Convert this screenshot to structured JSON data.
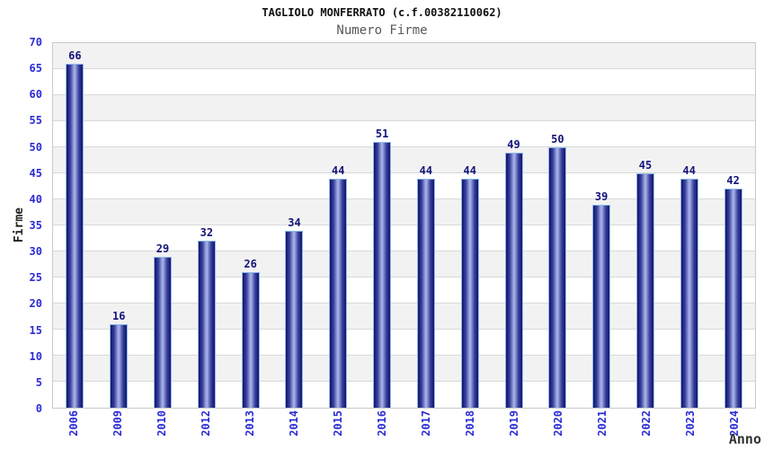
{
  "chart_data": {
    "type": "bar",
    "title": "TAGLIOLO MONFERRATO (c.f.00382110062)",
    "subtitle": "Numero Firme",
    "xlabel": "Anno",
    "ylabel": "Firme",
    "categories": [
      "2006",
      "2009",
      "2010",
      "2012",
      "2013",
      "2014",
      "2015",
      "2016",
      "2017",
      "2018",
      "2019",
      "2020",
      "2021",
      "2022",
      "2023",
      "2024"
    ],
    "values": [
      66,
      16,
      29,
      32,
      26,
      34,
      44,
      51,
      44,
      44,
      49,
      50,
      39,
      45,
      44,
      42
    ],
    "ylim": [
      0,
      70
    ],
    "ytick_step": 5,
    "yticks": [
      0,
      5,
      10,
      15,
      20,
      25,
      30,
      35,
      40,
      45,
      50,
      55,
      60,
      65,
      70
    ],
    "grid": true,
    "legend": "none",
    "value_labels_shown": true
  },
  "colors": {
    "title": "#111111",
    "subtitle": "#595959",
    "tick_label": "#2b2bd4",
    "value_label": "#14147a",
    "axis_title": "#333333",
    "bar_dark": "#1a1a72",
    "bar_mid": "#3a43a0",
    "bar_light": "#a4aee4",
    "bar_outline": "#8cbcec",
    "plot_border": "#c9c9c9",
    "band_gray": "#f2f2f2",
    "gridline": "#d9d9d9"
  }
}
